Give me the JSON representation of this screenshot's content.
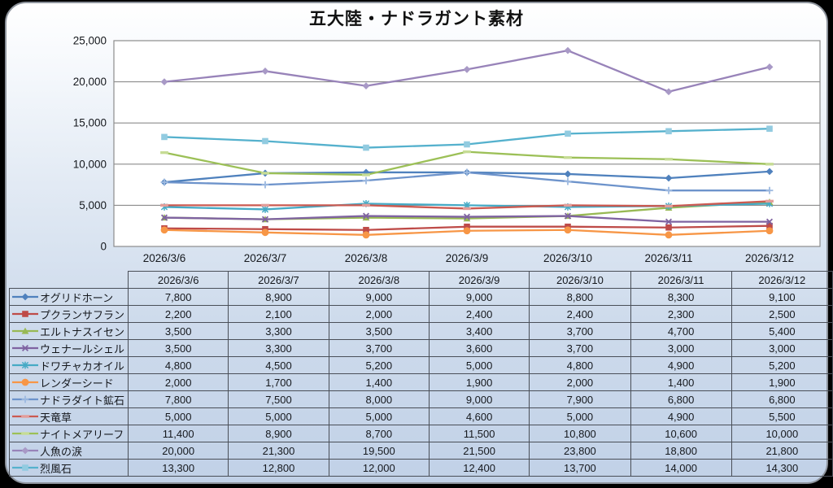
{
  "title": "五大陸・ナドラガント素材",
  "chart_data": {
    "type": "line",
    "title": "五大陸・ナドラガント素材",
    "x": [
      "2026/3/6",
      "2026/3/7",
      "2026/3/8",
      "2026/3/9",
      "2026/3/10",
      "2026/3/11",
      "2026/3/12"
    ],
    "ylim": [
      0,
      25000
    ],
    "ytick_step": 5000,
    "ytick_labels": [
      "0",
      "5,000",
      "10,000",
      "15,000",
      "20,000",
      "25,000"
    ],
    "grid": true,
    "legend_position": "data-table-left",
    "plot_bg": "#ffffff",
    "grid_color": "#8c8c8c",
    "series": [
      {
        "name": "オグリドホーン",
        "color": "#4F81BD",
        "marker": "diamond",
        "marker_color": "#4F81BD",
        "values": [
          7800,
          8900,
          9000,
          9000,
          8800,
          8300,
          9100
        ]
      },
      {
        "name": "プクランサフラン",
        "color": "#BE4B48",
        "marker": "square",
        "marker_color": "#BE4B48",
        "values": [
          2200,
          2100,
          2000,
          2400,
          2400,
          2300,
          2500
        ]
      },
      {
        "name": "エルトナスイセン",
        "color": "#98B954",
        "marker": "triangle",
        "marker_color": "#98B954",
        "values": [
          3500,
          3300,
          3500,
          3400,
          3700,
          4700,
          5400
        ]
      },
      {
        "name": "ウェナールシェル",
        "color": "#7F63A1",
        "marker": "x",
        "marker_color": "#7F63A1",
        "values": [
          3500,
          3300,
          3700,
          3600,
          3700,
          3000,
          3000
        ]
      },
      {
        "name": "ドワチャカオイル",
        "color": "#46AAC5",
        "marker": "asterisk",
        "marker_color": "#46AAC5",
        "values": [
          4800,
          4500,
          5200,
          5000,
          4800,
          4900,
          5200
        ]
      },
      {
        "name": "レンダーシード",
        "color": "#F79646",
        "marker": "circle",
        "marker_color": "#F79646",
        "values": [
          2000,
          1700,
          1400,
          1900,
          2000,
          1400,
          1900
        ]
      },
      {
        "name": "ナドラダイト鉱石",
        "color": "#6D93CB",
        "marker": "plus",
        "marker_color": "#9DB9E0",
        "values": [
          7800,
          7500,
          8000,
          9000,
          7900,
          6800,
          6800
        ]
      },
      {
        "name": "天竜草",
        "color": "#CB5A51",
        "marker": "dash",
        "marker_color": "#E39D99",
        "values": [
          5000,
          5000,
          5000,
          4600,
          5000,
          4900,
          5500
        ]
      },
      {
        "name": "ナイトメアリーフ",
        "color": "#9CC057",
        "marker": "dash",
        "marker_color": "#C6DC95",
        "values": [
          11400,
          8900,
          8700,
          11500,
          10800,
          10600,
          10000
        ]
      },
      {
        "name": "人魚の涙",
        "color": "#9883B9",
        "marker": "diamond",
        "marker_color": "#A899C6",
        "values": [
          20000,
          21300,
          19500,
          21500,
          23800,
          18800,
          21800
        ]
      },
      {
        "name": "烈風石",
        "color": "#55B1CD",
        "marker": "square",
        "marker_color": "#92CBE0",
        "values": [
          13300,
          12800,
          12000,
          12400,
          13700,
          14000,
          14300
        ]
      }
    ]
  }
}
